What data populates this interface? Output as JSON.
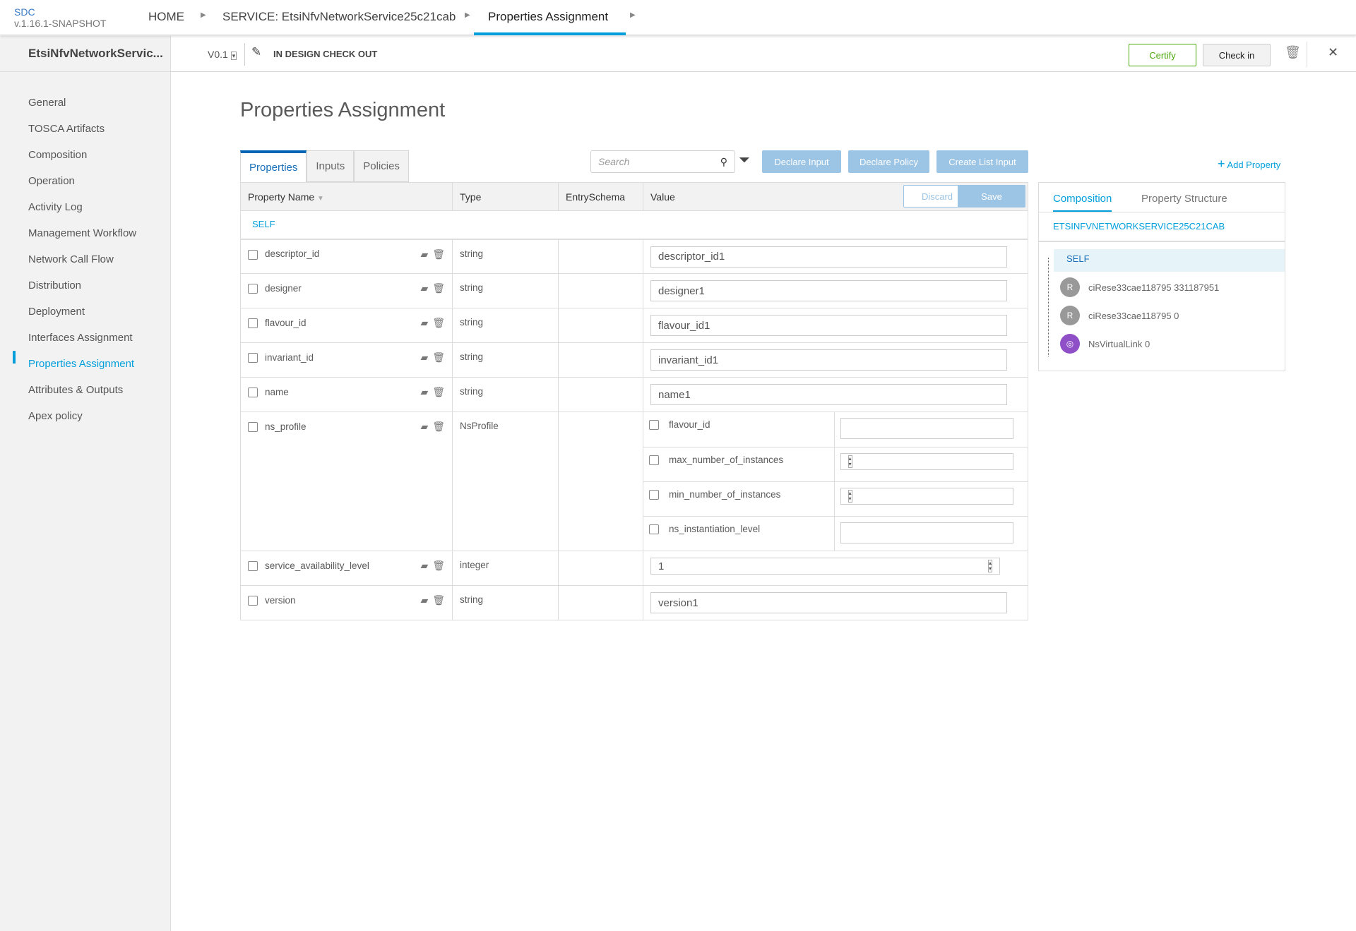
{
  "app": {
    "name": "SDC",
    "version": "v.1.16.1-SNAPSHOT"
  },
  "breadcrumb": [
    "HOME",
    "SERVICE: EtsiNfvNetworkService25c21cab",
    "Properties Assignment"
  ],
  "service": {
    "name": "EtsiNfvNetworkServic...",
    "version": "V0.1",
    "status": "IN DESIGN CHECK OUT"
  },
  "actions": {
    "certify": "Certify",
    "checkin": "Check in"
  },
  "sidebar": {
    "items": [
      {
        "label": "General"
      },
      {
        "label": "TOSCA Artifacts"
      },
      {
        "label": "Composition"
      },
      {
        "label": "Operation"
      },
      {
        "label": "Activity Log"
      },
      {
        "label": "Management Workflow"
      },
      {
        "label": "Network Call Flow"
      },
      {
        "label": "Distribution"
      },
      {
        "label": "Deployment"
      },
      {
        "label": "Interfaces Assignment"
      },
      {
        "label": "Properties Assignment"
      },
      {
        "label": "Attributes & Outputs"
      },
      {
        "label": "Apex policy"
      }
    ],
    "active": "Properties Assignment"
  },
  "page": {
    "title": "Properties Assignment"
  },
  "tabs": [
    "Properties",
    "Inputs",
    "Policies"
  ],
  "search": {
    "placeholder": "Search"
  },
  "toolbar": {
    "declare_input": "Declare Input",
    "declare_policy": "Declare Policy",
    "create_list_input": "Create List Input",
    "add_property": "Add Property",
    "discard": "Discard",
    "save": "Save"
  },
  "table": {
    "headers": [
      "Property Name",
      "Type",
      "EntrySchema",
      "Value"
    ],
    "group": "SELF",
    "rows": [
      {
        "name": "descriptor_id",
        "type": "string",
        "value": "descriptor_id1"
      },
      {
        "name": "designer",
        "type": "string",
        "value": "designer1"
      },
      {
        "name": "flavour_id",
        "type": "string",
        "value": "flavour_id1"
      },
      {
        "name": "invariant_id",
        "type": "string",
        "value": "invariant_id1"
      },
      {
        "name": "name",
        "type": "string",
        "value": "name1"
      }
    ],
    "ns_profile": {
      "name": "ns_profile",
      "type": "NsProfile",
      "fields": [
        "flavour_id",
        "max_number_of_instances",
        "min_number_of_instances",
        "ns_instantiation_level"
      ]
    },
    "service_availability_level": {
      "name": "service_availability_level",
      "type": "integer",
      "value": "1"
    },
    "version": {
      "name": "version",
      "type": "string",
      "value": "version1"
    }
  },
  "right_panel": {
    "tabs": [
      "Composition",
      "Property Structure"
    ],
    "service": "ETSINFVNETWORKSERVICE25C21CAB",
    "tree": [
      {
        "label": "SELF"
      },
      {
        "label": "ciRese33cae118795 331187951",
        "badge": "R"
      },
      {
        "label": "ciRese33cae118795 0",
        "badge": "R"
      },
      {
        "label": "NsVirtualLink 0"
      }
    ]
  },
  "colors": {
    "accent": "#009fdb",
    "certify": "#4ca90c",
    "button_disabled": "#9cc4e4",
    "virtual_link": "#8e4fc7"
  }
}
